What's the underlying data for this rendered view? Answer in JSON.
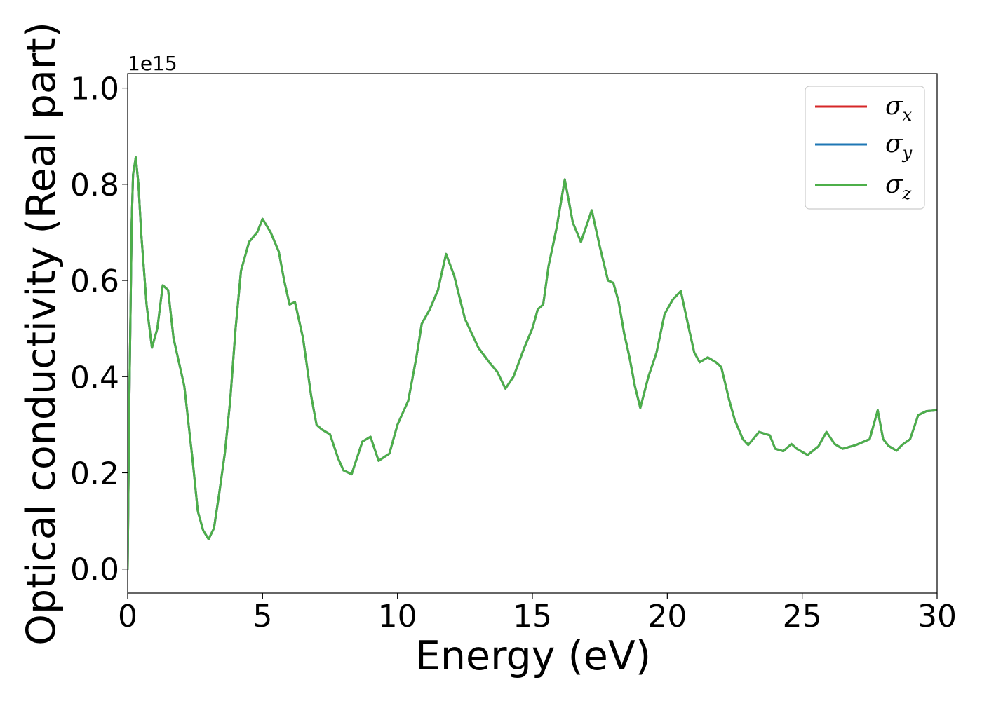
{
  "chart_data": {
    "type": "line",
    "xlabel": "Energy (eV)",
    "ylabel": "Optical conductivity (Real part)",
    "y_offset_text": "1e15",
    "xlim": [
      0,
      30
    ],
    "ylim": [
      -0.05,
      1.03
    ],
    "xticks": [
      0,
      5,
      10,
      15,
      20,
      25,
      30
    ],
    "xtick_labels": [
      "0",
      "5",
      "10",
      "15",
      "20",
      "25",
      "30"
    ],
    "yticks": [
      0.0,
      0.2,
      0.4,
      0.6,
      0.8,
      1.0
    ],
    "ytick_labels": [
      "0.0",
      "0.2",
      "0.4",
      "0.6",
      "0.8",
      "1.0"
    ],
    "grid": false,
    "legend_position": "top-right",
    "series": [
      {
        "name": "σx",
        "symbol": "σ",
        "subscript": "x",
        "color": "#d62728"
      },
      {
        "name": "σy",
        "symbol": "σ",
        "subscript": "y",
        "color": "#1f77b4"
      },
      {
        "name": "σz",
        "symbol": "σ",
        "subscript": "z",
        "color": "#4daf4a"
      }
    ],
    "x": [
      0,
      0.05,
      0.15,
      0.2,
      0.3,
      0.4,
      0.5,
      0.7,
      0.9,
      1.1,
      1.3,
      1.5,
      1.7,
      1.9,
      2.1,
      2.4,
      2.6,
      2.8,
      3.0,
      3.2,
      3.4,
      3.6,
      3.8,
      4.0,
      4.2,
      4.5,
      4.8,
      5.0,
      5.3,
      5.6,
      5.8,
      6.0,
      6.2,
      6.5,
      6.8,
      7.0,
      7.2,
      7.5,
      7.8,
      8.0,
      8.3,
      8.7,
      9.0,
      9.3,
      9.7,
      10.0,
      10.4,
      10.7,
      10.9,
      11.2,
      11.5,
      11.8,
      12.1,
      12.5,
      13.0,
      13.4,
      13.7,
      14.0,
      14.3,
      14.7,
      15.0,
      15.2,
      15.4,
      15.6,
      15.9,
      16.2,
      16.5,
      16.8,
      17.2,
      17.5,
      17.8,
      18.0,
      18.2,
      18.4,
      18.6,
      18.8,
      19.0,
      19.3,
      19.6,
      19.9,
      20.2,
      20.5,
      20.8,
      21.0,
      21.2,
      21.5,
      21.8,
      22.0,
      22.3,
      22.5,
      22.8,
      23.0,
      23.4,
      23.8,
      24.0,
      24.3,
      24.6,
      24.8,
      25.2,
      25.6,
      25.9,
      26.2,
      26.5,
      27.0,
      27.5,
      27.8,
      28.0,
      28.2,
      28.5,
      28.7,
      29.0,
      29.3,
      29.6,
      30.0
    ],
    "y": [
      0.0,
      0.3,
      0.72,
      0.82,
      0.856,
      0.8,
      0.7,
      0.55,
      0.46,
      0.5,
      0.59,
      0.58,
      0.48,
      0.43,
      0.38,
      0.23,
      0.12,
      0.08,
      0.062,
      0.085,
      0.16,
      0.24,
      0.35,
      0.5,
      0.62,
      0.68,
      0.7,
      0.728,
      0.7,
      0.66,
      0.6,
      0.55,
      0.555,
      0.48,
      0.36,
      0.3,
      0.29,
      0.28,
      0.23,
      0.205,
      0.197,
      0.265,
      0.275,
      0.225,
      0.24,
      0.3,
      0.35,
      0.44,
      0.51,
      0.54,
      0.58,
      0.655,
      0.61,
      0.52,
      0.46,
      0.43,
      0.41,
      0.375,
      0.4,
      0.46,
      0.5,
      0.54,
      0.55,
      0.63,
      0.71,
      0.81,
      0.72,
      0.68,
      0.746,
      0.67,
      0.6,
      0.595,
      0.555,
      0.49,
      0.44,
      0.38,
      0.335,
      0.4,
      0.45,
      0.53,
      0.56,
      0.578,
      0.5,
      0.45,
      0.43,
      0.44,
      0.43,
      0.42,
      0.35,
      0.31,
      0.27,
      0.258,
      0.285,
      0.278,
      0.25,
      0.245,
      0.26,
      0.25,
      0.237,
      0.255,
      0.285,
      0.26,
      0.25,
      0.258,
      0.27,
      0.33,
      0.27,
      0.256,
      0.246,
      0.258,
      0.27,
      0.32,
      0.328,
      0.33
    ]
  }
}
